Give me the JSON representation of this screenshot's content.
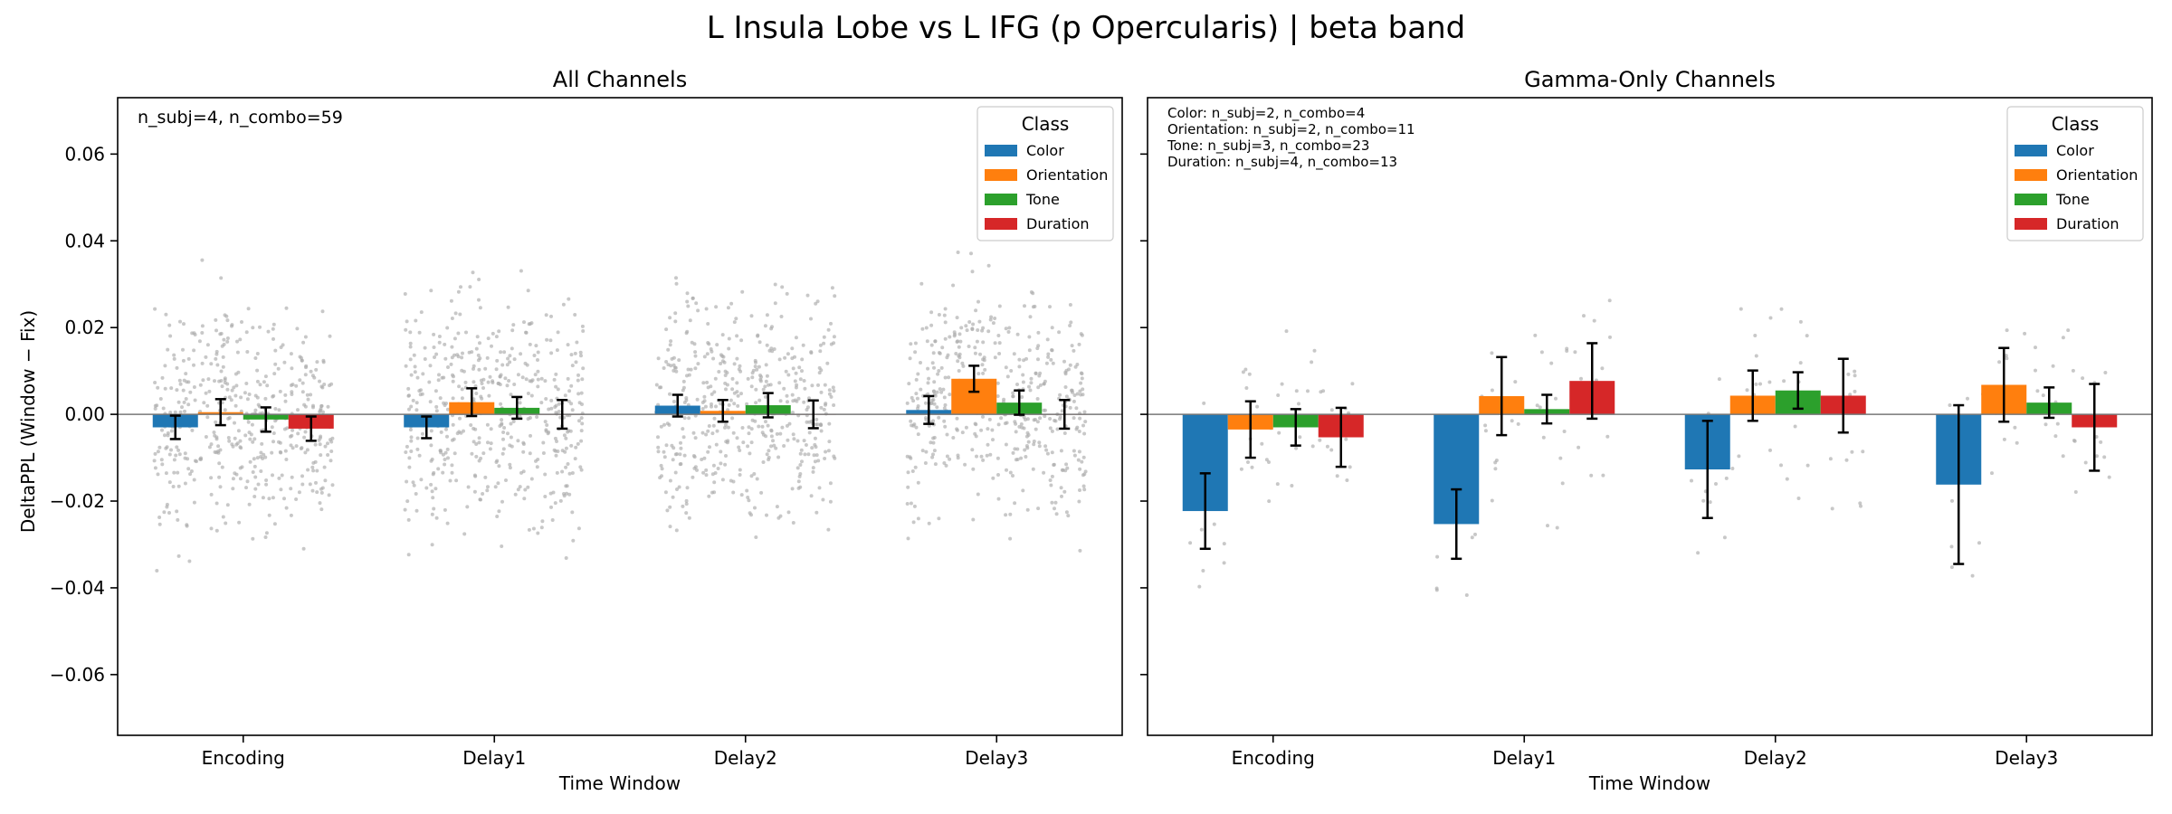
{
  "suptitle": "L Insula Lobe vs L IFG (p Opercularis)  |  beta band",
  "ylabel": "DeltaPPL (Window − Fix)",
  "legend_title": "Class",
  "colors": {
    "Color": "#1f77b4",
    "Orientation": "#ff7f0e",
    "Tone": "#2ca02c",
    "Duration": "#d62728",
    "scatter": "#aaaaaa",
    "zero_line": "#777777"
  },
  "chart_data": [
    {
      "type": "bar",
      "title": "All Channels",
      "xlabel": "Time Window",
      "ylabel": "DeltaPPL (Window − Fix)",
      "categories": [
        "Encoding",
        "Delay1",
        "Delay2",
        "Delay3"
      ],
      "ylim": [
        -0.074,
        0.073
      ],
      "yticks": [
        -0.06,
        -0.04,
        -0.02,
        0.0,
        0.02,
        0.04,
        0.06
      ],
      "ytick_labels": [
        "−0.06",
        "−0.04",
        "−0.02",
        "0.00",
        "0.02",
        "0.04",
        "0.06"
      ],
      "legend": {
        "title": "Class",
        "placement": "top-right",
        "entries": [
          "Color",
          "Orientation",
          "Tone",
          "Duration"
        ]
      },
      "annotation": [
        "n_subj=4, n_combo=59"
      ],
      "series": [
        {
          "name": "Color",
          "values": [
            -0.003,
            -0.003,
            0.002,
            0.001
          ],
          "err": [
            0.0027,
            0.0025,
            0.0025,
            0.0032
          ]
        },
        {
          "name": "Orientation",
          "values": [
            0.0005,
            0.0028,
            0.0008,
            0.0082
          ],
          "err": [
            0.003,
            0.0032,
            0.0025,
            0.003
          ]
        },
        {
          "name": "Tone",
          "values": [
            -0.0012,
            0.0015,
            0.0021,
            0.0027
          ],
          "err": [
            0.0028,
            0.0025,
            0.0028,
            0.0028
          ]
        },
        {
          "name": "Duration",
          "values": [
            -0.0033,
            0.0,
            0.0,
            0.0
          ],
          "err": [
            0.0028,
            0.0033,
            0.0032,
            0.0033
          ]
        }
      ]
    },
    {
      "type": "bar",
      "title": "Gamma-Only Channels",
      "xlabel": "Time Window",
      "categories": [
        "Encoding",
        "Delay1",
        "Delay2",
        "Delay3"
      ],
      "ylim": [
        -0.074,
        0.073
      ],
      "legend": {
        "title": "Class",
        "placement": "top-right",
        "entries": [
          "Color",
          "Orientation",
          "Tone",
          "Duration"
        ]
      },
      "annotation": [
        "Color: n_subj=2, n_combo=4",
        "Orientation: n_subj=2, n_combo=11",
        "Tone: n_subj=3, n_combo=23",
        "Duration: n_subj=4, n_combo=13"
      ],
      "series": [
        {
          "name": "Color",
          "values": [
            -0.0223,
            -0.0253,
            -0.0127,
            -0.0162
          ],
          "err": [
            0.0087,
            0.008,
            0.0112,
            0.0183
          ]
        },
        {
          "name": "Orientation",
          "values": [
            -0.0035,
            0.0042,
            0.0043,
            0.0068
          ],
          "err": [
            0.0065,
            0.009,
            0.0058,
            0.0085
          ]
        },
        {
          "name": "Tone",
          "values": [
            -0.003,
            0.0012,
            0.0055,
            0.0027
          ],
          "err": [
            0.0042,
            0.0033,
            0.0042,
            0.0035
          ]
        },
        {
          "name": "Duration",
          "values": [
            -0.0053,
            0.0077,
            0.0043,
            -0.003
          ],
          "err": [
            0.0068,
            0.0087,
            0.0085,
            0.01
          ]
        }
      ]
    }
  ]
}
